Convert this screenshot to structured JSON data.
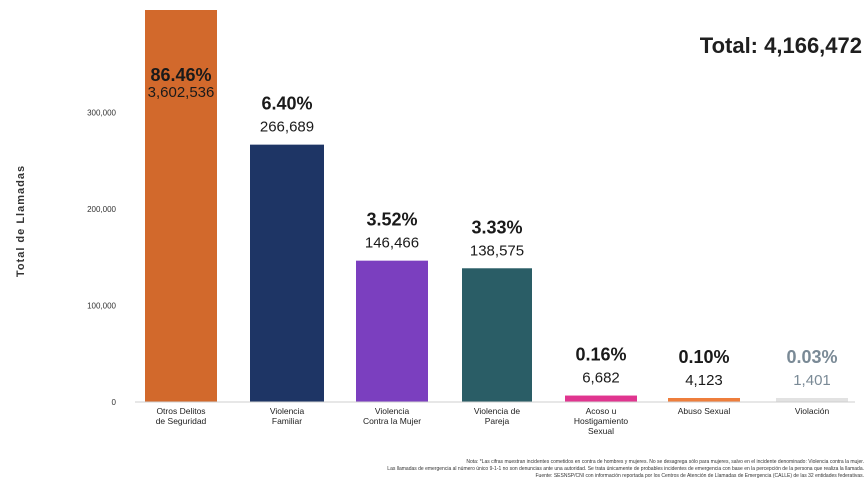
{
  "total_label": "Total: 4,166,472",
  "chart_data": {
    "type": "bar",
    "ylabel": "Total de Llamadas",
    "ylim": [
      0,
      360000
    ],
    "yticks": [
      0,
      100000,
      200000,
      300000
    ],
    "ytick_labels": [
      "0",
      "100,000",
      "200,000",
      "300,000"
    ],
    "grid": false,
    "categories": [
      [
        "Otros Delitos",
        "de Seguridad"
      ],
      [
        "Violencia",
        "Familiar"
      ],
      [
        "Violencia",
        "Contra la Mujer"
      ],
      [
        "Violencia de",
        "Pareja"
      ],
      [
        "Acoso u",
        "Hostigamiento",
        "Sexual"
      ],
      [
        "Abuso Sexual"
      ],
      [
        "Violación"
      ]
    ],
    "values": [
      3602536,
      266689,
      146466,
      138575,
      6682,
      4123,
      1401
    ],
    "value_labels": [
      "3,602,536",
      "266,689",
      "146,466",
      "138,575",
      "6,682",
      "4,123",
      "1,401"
    ],
    "percent_labels": [
      "86.46%",
      "6.40%",
      "3.52%",
      "3.33%",
      "0.16%",
      "0.10%",
      "0.03%"
    ],
    "colors": [
      "#d2692c",
      "#1e3565",
      "#7b3fbf",
      "#2a5d66",
      "#e0358f",
      "#ee7e3c",
      "#e2e2e2"
    ],
    "percent_colors": [
      "#1a1a1a",
      "#1a1a1a",
      "#1a1a1a",
      "#1a1a1a",
      "#1a1a1a",
      "#1a1a1a",
      "#7a8a96"
    ],
    "value_colors": [
      "#1a1a1a",
      "#1a1a1a",
      "#1a1a1a",
      "#1a1a1a",
      "#1a1a1a",
      "#1a1a1a",
      "#7a8a96"
    ],
    "clipped": [
      true,
      false,
      false,
      false,
      false,
      false,
      false
    ]
  },
  "footnotes": [
    "Nota: *Las cifras muestran incidentes cometidos en contra de hombres y mujeres. No se desagrega sólo para mujeres, salvo en el incidente denominado: Violencia contra la mujer.",
    "Las llamadas de emergencia al número único 9-1-1 no son denuncias ante una autoridad. Se trata únicamente de probables incidentes de emergencia con base en la percepción de la persona que realiza la llamada.",
    "Fuente: SESNSP/CNI con información reportada por los Centros de Atención de Llamadas de Emergencia (CALLE) de las 32 entidades federativas."
  ]
}
